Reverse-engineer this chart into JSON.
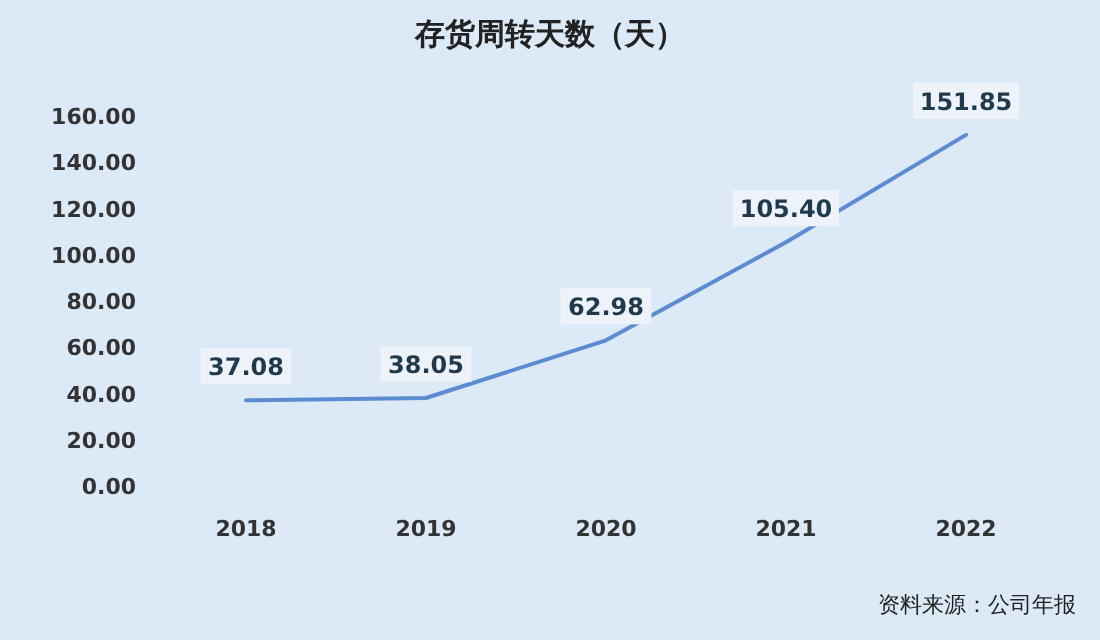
{
  "chart_data": {
    "type": "line",
    "title": "存货周转天数（天）",
    "categories": [
      "2018",
      "2019",
      "2020",
      "2021",
      "2022"
    ],
    "values": [
      37.08,
      38.05,
      62.98,
      105.4,
      151.85
    ],
    "value_labels": [
      "37.08",
      "38.05",
      "62.98",
      "105.40",
      "151.85"
    ],
    "color": "#5b8bd0",
    "ylim": [
      0,
      160
    ],
    "yticks": [
      {
        "value": 0,
        "label": "0.00"
      },
      {
        "value": 20,
        "label": "20.00"
      },
      {
        "value": 40,
        "label": "40.00"
      },
      {
        "value": 60,
        "label": "60.00"
      },
      {
        "value": 80,
        "label": "80.00"
      },
      {
        "value": 100,
        "label": "100.00"
      },
      {
        "value": 120,
        "label": "120.00"
      },
      {
        "value": 140,
        "label": "140.00"
      },
      {
        "value": 160,
        "label": "160.00"
      }
    ],
    "annotations": [
      "资料来源：公司年报"
    ]
  }
}
